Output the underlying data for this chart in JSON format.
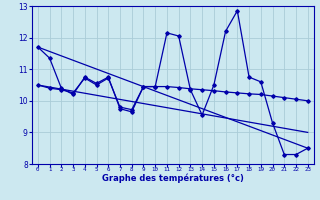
{
  "title": "Graphe des températures (°c)",
  "x_labels": [
    "0",
    "1",
    "2",
    "3",
    "4",
    "5",
    "6",
    "7",
    "8",
    "9",
    "10",
    "11",
    "12",
    "13",
    "14",
    "15",
    "16",
    "17",
    "18",
    "19",
    "20",
    "21",
    "22",
    "23"
  ],
  "xlim": [
    -0.5,
    23.5
  ],
  "ylim": [
    8,
    13
  ],
  "yticks": [
    8,
    9,
    10,
    11,
    12,
    13
  ],
  "background_color": "#cce8f0",
  "grid_color": "#aaccd8",
  "line_color": "#0000aa",
  "line1_x": [
    0,
    1,
    2,
    3,
    4,
    5,
    6,
    7,
    8,
    9,
    10,
    11,
    12,
    13,
    14,
    15,
    16,
    17,
    18,
    19,
    20,
    21,
    22,
    23
  ],
  "line1_y": [
    11.7,
    11.35,
    10.4,
    10.2,
    10.75,
    10.55,
    10.75,
    9.75,
    9.65,
    10.45,
    10.45,
    12.15,
    12.05,
    10.35,
    9.55,
    10.5,
    12.2,
    12.85,
    10.75,
    10.6,
    9.3,
    8.3,
    8.3,
    8.5
  ],
  "line2_x": [
    0,
    1,
    2,
    3,
    4,
    5,
    6,
    7,
    8,
    9,
    10,
    11,
    12,
    13,
    14,
    15,
    16,
    17,
    18,
    19,
    20,
    21,
    22,
    23
  ],
  "line2_y": [
    10.5,
    10.4,
    10.35,
    10.25,
    10.72,
    10.5,
    10.72,
    9.8,
    9.72,
    10.45,
    10.45,
    10.45,
    10.42,
    10.38,
    10.35,
    10.32,
    10.28,
    10.25,
    10.22,
    10.2,
    10.15,
    10.1,
    10.05,
    10.0
  ],
  "line3_x": [
    0,
    23
  ],
  "line3_y": [
    11.7,
    8.5
  ],
  "line4_x": [
    0,
    23
  ],
  "line4_y": [
    10.5,
    9.0
  ]
}
